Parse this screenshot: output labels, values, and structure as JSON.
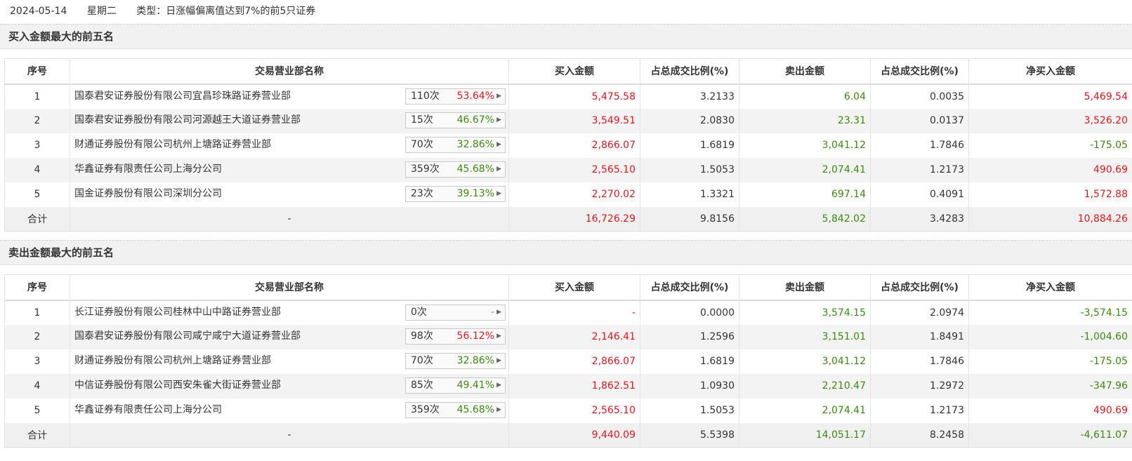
{
  "header": {
    "date": "2024-05-14",
    "weekday": "星期二",
    "type": "类型：日涨幅偏离值达到7%的前5只证券"
  },
  "columns": [
    "序号",
    "交易营业部名称",
    "买入金额",
    "占总成交比例(%)",
    "卖出金额",
    "占总成交比例(%)",
    "净买入金额"
  ],
  "buy_section": {
    "title": "买入金额最大的前五名",
    "rows": [
      {
        "idx": "1",
        "name": "国泰君安证券股份有限公司宜昌珍珠路证券营业部",
        "times": "110次",
        "rate": "53.64%",
        "buy": "5,475.58",
        "buy_pct": "3.2133",
        "sell": "6.04",
        "sell_pct": "0.0035",
        "net": "5,469.54"
      },
      {
        "idx": "2",
        "name": "国泰君安证券股份有限公司河源越王大道证券营业部",
        "times": "15次",
        "rate": "46.67%",
        "buy": "3,549.51",
        "buy_pct": "2.0830",
        "sell": "23.31",
        "sell_pct": "0.0137",
        "net": "3,526.20"
      },
      {
        "idx": "3",
        "name": "财通证券股份有限公司杭州上塘路证券营业部",
        "times": "70次",
        "rate": "32.86%",
        "buy": "2,866.07",
        "buy_pct": "1.6819",
        "sell": "3,041.12",
        "sell_pct": "1.7846",
        "net": "-175.05"
      },
      {
        "idx": "4",
        "name": "华鑫证券有限责任公司上海分公司",
        "times": "359次",
        "rate": "45.68%",
        "buy": "2,565.10",
        "buy_pct": "1.5053",
        "sell": "2,074.41",
        "sell_pct": "1.2173",
        "net": "490.69"
      },
      {
        "idx": "5",
        "name": "国金证券股份有限公司深圳分公司",
        "times": "23次",
        "rate": "39.13%",
        "buy": "2,270.02",
        "buy_pct": "1.3321",
        "sell": "697.14",
        "sell_pct": "0.4091",
        "net": "1,572.88"
      }
    ],
    "total": {
      "label": "合计",
      "name": "-",
      "buy": "16,726.29",
      "buy_pct": "9.8156",
      "sell": "5,842.02",
      "sell_pct": "3.4283",
      "net": "10,884.26"
    }
  },
  "sell_section": {
    "title": "卖出金额最大的前五名",
    "rows": [
      {
        "idx": "1",
        "name": "长江证券股份有限公司桂林中山中路证券营业部",
        "times": "0次",
        "rate": "-",
        "buy": "-",
        "buy_pct": "0.0000",
        "sell": "3,574.15",
        "sell_pct": "2.0974",
        "net": "-3,574.15"
      },
      {
        "idx": "2",
        "name": "国泰君安证券股份有限公司咸宁咸宁大道证券营业部",
        "times": "98次",
        "rate": "56.12%",
        "buy": "2,146.41",
        "buy_pct": "1.2596",
        "sell": "3,151.01",
        "sell_pct": "1.8491",
        "net": "-1,004.60"
      },
      {
        "idx": "3",
        "name": "财通证券股份有限公司杭州上塘路证券营业部",
        "times": "70次",
        "rate": "32.86%",
        "buy": "2,866.07",
        "buy_pct": "1.6819",
        "sell": "3,041.12",
        "sell_pct": "1.7846",
        "net": "-175.05"
      },
      {
        "idx": "4",
        "name": "中信证券股份有限公司西安朱雀大街证券营业部",
        "times": "85次",
        "rate": "49.41%",
        "buy": "1,862.51",
        "buy_pct": "1.0930",
        "sell": "2,210.47",
        "sell_pct": "1.2972",
        "net": "-347.96"
      },
      {
        "idx": "5",
        "name": "华鑫证券有限责任公司上海分公司",
        "times": "359次",
        "rate": "45.68%",
        "buy": "2,565.10",
        "buy_pct": "1.5053",
        "sell": "2,074.41",
        "sell_pct": "1.2173",
        "net": "490.69"
      }
    ],
    "total": {
      "label": "合计",
      "name": "-",
      "buy": "9,440.09",
      "buy_pct": "5.5398",
      "sell": "14,051.17",
      "sell_pct": "8.2458",
      "net": "-4,611.07"
    }
  },
  "colors": {
    "positive": "#e4161c",
    "negative": "#3a8a11"
  }
}
